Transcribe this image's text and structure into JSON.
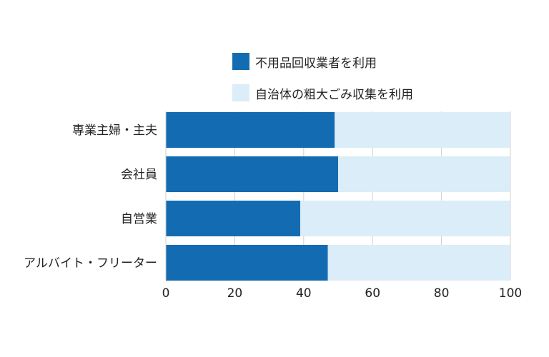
{
  "chart_data": {
    "type": "bar",
    "orientation": "horizontal",
    "stacked": true,
    "categories": [
      "専業主婦・主夫",
      "会社員",
      "自営業",
      "アルバイト・フリーター"
    ],
    "series": [
      {
        "name": "不用品回収業者を利用",
        "values": [
          49,
          50,
          39,
          47
        ],
        "color": "#136cb2"
      },
      {
        "name": "自治体の粗大ごみ収集を利用",
        "values": [
          51,
          50,
          61,
          53
        ],
        "color": "#daedf8"
      }
    ],
    "xlim": [
      0,
      100
    ],
    "xticks": [
      "0",
      "20",
      "40",
      "60",
      "80",
      "100"
    ],
    "grid": true,
    "legend_position": "top",
    "colors": {
      "grid": "#cfcfcf",
      "axis": "#444444",
      "text": "#222222"
    }
  }
}
